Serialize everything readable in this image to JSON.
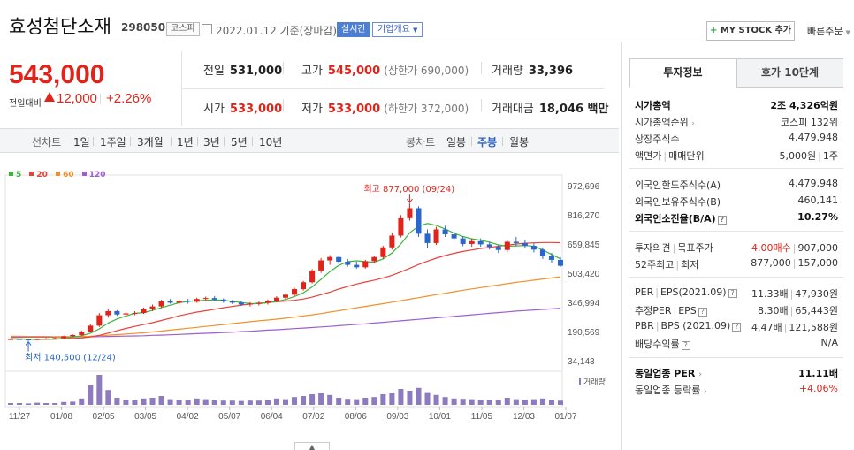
{
  "header": {
    "stock_name": "효성첨단소재",
    "stock_code": "298050",
    "market_badge": "코스피",
    "date_text": "2022.01.12 기준(장마감)",
    "live_badge": "실시간",
    "overview_button": "기업개요",
    "my_stock_plus": "+",
    "my_stock_button": "MY STOCK 추가",
    "quick_order": "빠른주문"
  },
  "price": {
    "current": "543,000",
    "change_label": "전일대비",
    "change_amount": "12,000",
    "change_pct": "+2.26%"
  },
  "stats": {
    "prev_close_label": "전일",
    "prev_close": "531,000",
    "high_label": "고가",
    "high": "545,000",
    "upper_limit": "(상한가 690,000)",
    "volume_label": "거래량",
    "volume": "33,396",
    "open_label": "시가",
    "open": "533,000",
    "low_label": "저가",
    "low": "533,000",
    "lower_limit": "(하한가 372,000)",
    "amount_label": "거래대금",
    "amount": "18,046 백만"
  },
  "toolbar": {
    "line_chart_label": "선차트",
    "line_periods": [
      "1일",
      "1주일",
      "3개월",
      "1년",
      "3년",
      "5년",
      "10년"
    ],
    "candle_label": "봉차트",
    "candle_periods": [
      "일봉",
      "주봉",
      "월봉"
    ],
    "active_candle": "주봉"
  },
  "legend": [
    {
      "label": "5",
      "color": "#3db53d"
    },
    {
      "label": "20",
      "color": "#e8413c"
    },
    {
      "label": "60",
      "color": "#f0922b"
    },
    {
      "label": "120",
      "color": "#9d5fd0"
    }
  ],
  "chart_data": {
    "type": "candlestick",
    "title": "",
    "y_ticks": [
      972696,
      816270,
      659845,
      503420,
      346994,
      190569,
      34143
    ],
    "y_tick_labels": [
      "972,696",
      "816,270",
      "659,845",
      "503,420",
      "346,994",
      "190,569",
      "34,143"
    ],
    "x_tick_labels": [
      "11/27",
      "01/08",
      "02/05",
      "03/05",
      "04/02",
      "05/07",
      "06/04",
      "07/02",
      "08/06",
      "09/03",
      "10/01",
      "11/05",
      "12/03",
      "01/07"
    ],
    "high_annotation": "최고 877,000 (09/24)",
    "low_annotation": "최저 140,500 (12/24)",
    "volume_label": "거래량",
    "candles": [
      [
        150000,
        155000,
        145000,
        150000
      ],
      [
        150000,
        152000,
        146000,
        148000
      ],
      [
        148000,
        150000,
        140500,
        145000
      ],
      [
        145000,
        152000,
        144000,
        150000
      ],
      [
        150000,
        156000,
        147000,
        152000
      ],
      [
        152000,
        158000,
        149000,
        155000
      ],
      [
        155000,
        168000,
        152000,
        165000
      ],
      [
        165000,
        175000,
        160000,
        172000
      ],
      [
        172000,
        195000,
        168000,
        190000
      ],
      [
        190000,
        228000,
        185000,
        222000
      ],
      [
        222000,
        290000,
        215000,
        278000
      ],
      [
        278000,
        312000,
        265000,
        300000
      ],
      [
        300000,
        305000,
        275000,
        282000
      ],
      [
        282000,
        295000,
        272000,
        288000
      ],
      [
        288000,
        300000,
        278000,
        290000
      ],
      [
        290000,
        318000,
        285000,
        312000
      ],
      [
        312000,
        335000,
        300000,
        325000
      ],
      [
        325000,
        360000,
        318000,
        352000
      ],
      [
        352000,
        365000,
        340000,
        345000
      ],
      [
        345000,
        362000,
        335000,
        355000
      ],
      [
        355000,
        365000,
        340000,
        350000
      ],
      [
        350000,
        372000,
        345000,
        365000
      ],
      [
        365000,
        378000,
        352000,
        370000
      ],
      [
        370000,
        380000,
        355000,
        362000
      ],
      [
        362000,
        368000,
        345000,
        352000
      ],
      [
        352000,
        360000,
        338000,
        345000
      ],
      [
        345000,
        352000,
        328000,
        335000
      ],
      [
        335000,
        348000,
        325000,
        340000
      ],
      [
        340000,
        352000,
        330000,
        345000
      ],
      [
        345000,
        362000,
        335000,
        355000
      ],
      [
        355000,
        380000,
        348000,
        372000
      ],
      [
        372000,
        395000,
        360000,
        388000
      ],
      [
        388000,
        425000,
        380000,
        418000
      ],
      [
        418000,
        462000,
        410000,
        455000
      ],
      [
        455000,
        525000,
        448000,
        518000
      ],
      [
        518000,
        585000,
        505000,
        572000
      ],
      [
        572000,
        600000,
        548000,
        590000
      ],
      [
        590000,
        598000,
        555000,
        565000
      ],
      [
        565000,
        580000,
        538000,
        548000
      ],
      [
        548000,
        565000,
        528000,
        535000
      ],
      [
        535000,
        575000,
        528000,
        568000
      ],
      [
        568000,
        598000,
        555000,
        590000
      ],
      [
        590000,
        650000,
        580000,
        642000
      ],
      [
        642000,
        720000,
        630000,
        705000
      ],
      [
        705000,
        815000,
        695000,
        798000
      ],
      [
        798000,
        877000,
        785000,
        852000
      ],
      [
        852000,
        862000,
        698000,
        715000
      ],
      [
        715000,
        738000,
        640000,
        665000
      ],
      [
        665000,
        752000,
        655000,
        738000
      ],
      [
        738000,
        758000,
        698000,
        712000
      ],
      [
        712000,
        725000,
        678000,
        690000
      ],
      [
        690000,
        702000,
        648000,
        660000
      ],
      [
        660000,
        688000,
        645000,
        675000
      ],
      [
        675000,
        690000,
        645000,
        658000
      ],
      [
        658000,
        672000,
        630000,
        645000
      ],
      [
        645000,
        655000,
        612000,
        628000
      ],
      [
        628000,
        680000,
        618000,
        672000
      ],
      [
        672000,
        698000,
        648000,
        665000
      ],
      [
        665000,
        680000,
        640000,
        650000
      ],
      [
        650000,
        664000,
        615000,
        630000
      ],
      [
        630000,
        642000,
        580000,
        595000
      ],
      [
        595000,
        612000,
        560000,
        575000
      ],
      [
        575000,
        590000,
        538000,
        543000
      ]
    ],
    "ma5": [
      150000,
      150000,
      149000,
      148000,
      149000,
      150000,
      154000,
      160000,
      168000,
      181000,
      205000,
      236000,
      258000,
      274000,
      288000,
      292000,
      304000,
      318000,
      332000,
      345000,
      352000,
      356000,
      358000,
      360000,
      358000,
      352000,
      346000,
      341000,
      340000,
      345000,
      352000,
      362000,
      378000,
      398000,
      430000,
      470000,
      512000,
      545000,
      565000,
      570000,
      565000,
      562000,
      580000,
      612000,
      660000,
      720000,
      756000,
      770000,
      760000,
      740000,
      718000,
      700000,
      688000,
      680000,
      670000,
      655000,
      648000,
      650000,
      652000,
      648000,
      628000,
      604000,
      580000
    ],
    "ma20": [
      152000,
      151000,
      150000,
      150000,
      150000,
      150000,
      151000,
      153000,
      156000,
      161000,
      170000,
      182000,
      195000,
      207000,
      218000,
      228000,
      238000,
      250000,
      262000,
      275000,
      285000,
      295000,
      302000,
      310000,
      318000,
      325000,
      332000,
      338000,
      342000,
      346000,
      350000,
      354000,
      358000,
      365000,
      375000,
      388000,
      402000,
      418000,
      432000,
      445000,
      456000,
      466000,
      478000,
      492000,
      510000,
      530000,
      550000,
      568000,
      584000,
      598000,
      610000,
      620000,
      628000,
      636000,
      642000,
      648000,
      654000,
      660000,
      664000,
      666000,
      668000,
      668000,
      667000
    ],
    "ma60": [
      165000,
      165000,
      164000,
      164000,
      164000,
      163000,
      163000,
      163000,
      164000,
      165000,
      168000,
      171000,
      174000,
      177000,
      180000,
      184000,
      188000,
      193000,
      198000,
      203000,
      208000,
      213000,
      218000,
      223000,
      228000,
      233000,
      238000,
      243000,
      248000,
      252000,
      257000,
      262000,
      268000,
      274000,
      280000,
      287000,
      295000,
      302000,
      310000,
      318000,
      325000,
      333000,
      340000,
      348000,
      356000,
      364000,
      372000,
      380000,
      388000,
      396000,
      404000,
      412000,
      419000,
      426000,
      433000,
      440000,
      447000,
      454000,
      460000,
      466000,
      472000,
      478000,
      484000
    ],
    "ma120": [
      160000,
      160000,
      160000,
      160000,
      160000,
      160000,
      161000,
      161000,
      162000,
      162000,
      163000,
      164000,
      165000,
      166000,
      167000,
      168000,
      170000,
      171000,
      173000,
      175000,
      177000,
      179000,
      181000,
      183000,
      185000,
      187000,
      190000,
      192000,
      195000,
      198000,
      200000,
      203000,
      206000,
      209000,
      212000,
      215000,
      218000,
      222000,
      225000,
      229000,
      232000,
      236000,
      240000,
      244000,
      248000,
      252000,
      256000,
      260000,
      264000,
      268000,
      272000,
      276000,
      280000,
      284000,
      288000,
      292000,
      296000,
      300000,
      303000,
      306000,
      309000,
      312000,
      315000
    ],
    "volumes": [
      0.05,
      0.05,
      0.04,
      0.06,
      0.05,
      0.05,
      0.08,
      0.09,
      0.18,
      0.55,
      0.85,
      0.42,
      0.2,
      0.15,
      0.14,
      0.18,
      0.2,
      0.25,
      0.16,
      0.15,
      0.14,
      0.18,
      0.16,
      0.13,
      0.12,
      0.12,
      0.11,
      0.12,
      0.12,
      0.14,
      0.18,
      0.16,
      0.22,
      0.25,
      0.3,
      0.35,
      0.28,
      0.2,
      0.17,
      0.16,
      0.2,
      0.22,
      0.3,
      0.35,
      0.45,
      0.4,
      0.48,
      0.36,
      0.28,
      0.22,
      0.18,
      0.17,
      0.16,
      0.15,
      0.15,
      0.14,
      0.2,
      0.16,
      0.15,
      0.16,
      0.18,
      0.15,
      0.12
    ]
  },
  "tabs": {
    "invest_info": "투자정보",
    "order_book": "호가 10단계"
  },
  "invest": {
    "market_cap_label": "시가총액",
    "market_cap": "2조 4,326억원",
    "market_cap_rank_label": "시가총액순위",
    "market_cap_rank": "코스피 132위",
    "listed_shares_label": "상장주식수",
    "listed_shares": "4,479,948",
    "par_label": "액면가",
    "unit_label": "매매단위",
    "par_value": "5,000원",
    "trade_unit": "1주",
    "foreign_limit_label": "외국인한도주식수(A)",
    "foreign_limit": "4,479,948",
    "foreign_hold_label": "외국인보유주식수(B)",
    "foreign_hold": "460,141",
    "foreign_ratio_label": "외국인소진율(B/A)",
    "foreign_ratio": "10.27%",
    "opinion_label": "투자의견",
    "target_label": "목표주가",
    "opinion_value": "4.00매수",
    "target_price": "907,000",
    "week52_high_label": "52주최고",
    "week52_low_label": "최저",
    "week52_high": "877,000",
    "week52_low": "157,000",
    "per_label": "PER",
    "eps_label": "EPS(2021.09)",
    "per_value": "11.33배",
    "eps_value": "47,930원",
    "est_per_label": "추정PER",
    "est_eps_label": "EPS",
    "est_per_value": "8.30배",
    "est_eps_value": "65,443원",
    "pbr_label": "PBR",
    "bps_label": "BPS (2021.09)",
    "pbr_value": "4.47배",
    "bps_value": "121,588원",
    "dividend_label": "배당수익률",
    "dividend_value": "N/A",
    "industry_per_label": "동일업종 PER",
    "industry_per": "11.11배",
    "industry_rate_label": "동일업종 등락률",
    "industry_rate": "+4.06%"
  }
}
